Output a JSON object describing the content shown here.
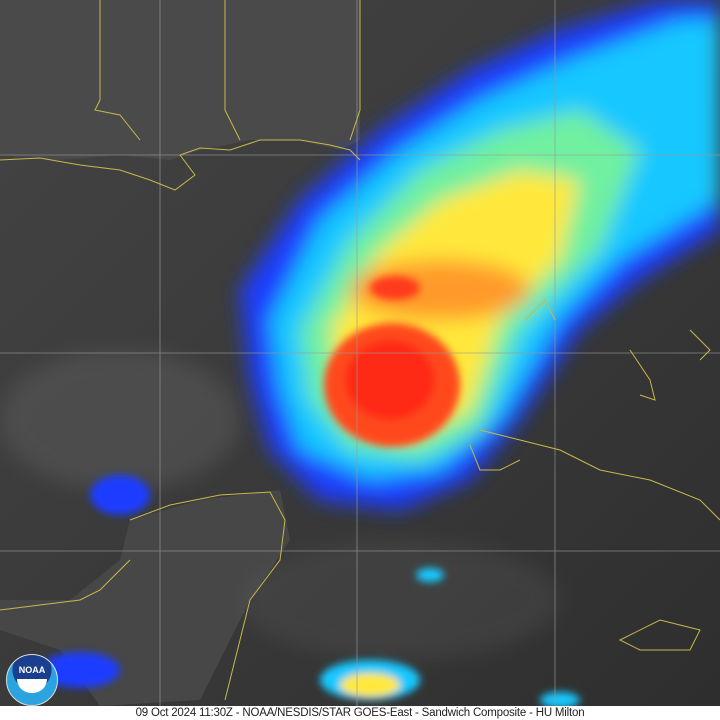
{
  "image": {
    "caption": "09 Oct 2024 11:30Z - NOAA/NESDIS/STAR GOES-East - Sandwich Composite - HU Milton",
    "logo_text": "NOAA",
    "colors": {
      "background": "#3a3a3a",
      "coastline": "#c8b84a",
      "grid": "#9a9a9a",
      "eye": "#ff3a1a"
    }
  }
}
